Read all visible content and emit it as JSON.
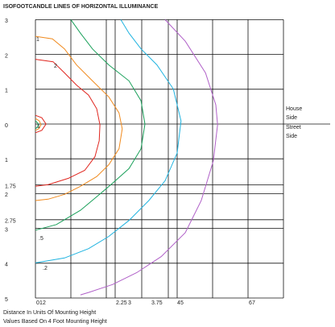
{
  "chart_data": {
    "type": "contour",
    "title": "ISOFOOTCANDLE LINES OF HORIZONTAL ILLUMINANCE",
    "xlabel": "Distance In Units Of Mounting Height",
    "note": "Values Based On 4 Foot Mounting Height",
    "side_labels": [
      "House",
      "Side",
      "Street",
      "Side"
    ],
    "xlim": [
      0,
      7
    ],
    "ylim": [
      -5,
      3
    ],
    "xticks": [
      0,
      1,
      2,
      2.25,
      3,
      3.75,
      4,
      5,
      6,
      7
    ],
    "yticks": [
      3,
      2,
      1,
      0,
      {
        "value": -1,
        "label": "1"
      },
      {
        "value": -1.75,
        "label": "1.75"
      },
      {
        "value": -2,
        "label": "2"
      },
      {
        "value": -2.75,
        "label": "2.75"
      },
      {
        "value": -3,
        "label": "3"
      },
      {
        "value": -4,
        "label": "4"
      },
      {
        "value": -5,
        "label": "5"
      }
    ],
    "grid": true,
    "series": [
      {
        "color": "#e0261f",
        "label": "2",
        "x": [
          0,
          0.5,
          0.82,
          1.16,
          1.5,
          1.73,
          1.82,
          1.8,
          1.68,
          1.39,
          0.93,
          0.36,
          0
        ],
        "y": [
          1.86,
          1.79,
          1.47,
          1.12,
          0.83,
          0.44,
          -0.02,
          -0.48,
          -0.94,
          -1.33,
          -1.56,
          -1.74,
          -1.79
        ]
      },
      {
        "color": "#e0261f",
        "x": [
          0,
          0.18,
          0.3,
          0.18,
          0
        ],
        "y": [
          0.25,
          0.18,
          0,
          -0.18,
          -0.25
        ]
      },
      {
        "color": "#f08a1e",
        "x": [
          0,
          0.11,
          0.16,
          0.09,
          0
        ],
        "y": [
          0.16,
          0.09,
          -0.02,
          -0.14,
          -0.18
        ]
      },
      {
        "color": "#1aa05a",
        "label": "1",
        "x": [
          0,
          0.07,
          0.07,
          0
        ],
        "y": [
          0.09,
          0.02,
          -0.07,
          -0.14
        ]
      },
      {
        "color": "#f08a1e",
        "label": "1",
        "x": [
          0,
          0.48,
          0.82,
          1.16,
          1.61,
          2.07,
          2.36,
          2.45,
          2.36,
          2.07,
          1.73,
          1.27,
          0.82,
          0.36,
          0
        ],
        "y": [
          2.52,
          2.45,
          2.16,
          1.7,
          1.24,
          0.78,
          0.32,
          -0.14,
          -0.71,
          -1.17,
          -1.51,
          -1.79,
          -2.02,
          -2.16,
          -2.2
        ]
      },
      {
        "color": "#1aa05a",
        "label": ".5",
        "x": [
          1,
          1.27,
          1.61,
          2.07,
          2.64,
          2.98,
          3.09,
          2.98,
          2.64,
          2.18,
          1.73,
          1.27,
          0.59,
          0
        ],
        "y": [
          3.0,
          2.61,
          2.16,
          1.7,
          1.24,
          0.67,
          0,
          -0.71,
          -1.28,
          -1.7,
          -2.09,
          -2.48,
          -2.89,
          -3.05
        ]
      },
      {
        "color": "#1fb3e0",
        "label": ".2",
        "x": [
          2.41,
          2.64,
          2.98,
          3.43,
          3.89,
          4.11,
          4.0,
          3.66,
          3.2,
          2.64,
          2.07,
          1.5,
          0.82,
          0
        ],
        "y": [
          3.0,
          2.61,
          2.16,
          1.7,
          1.01,
          0.09,
          -0.83,
          -1.63,
          -2.2,
          -2.77,
          -3.23,
          -3.58,
          -3.85,
          -3.99
        ]
      },
      {
        "color": "#b060c8",
        "x": [
          3.66,
          4.23,
          4.8,
          5.09,
          5.14,
          5.02,
          4.68,
          4.23,
          3.55,
          2.86,
          2.18,
          1.5,
          1.27
        ],
        "y": [
          3.0,
          2.38,
          1.47,
          0.55,
          -0.02,
          -1.06,
          -2.2,
          -3.12,
          -3.81,
          -4.27,
          -4.61,
          -4.84,
          -4.91
        ]
      }
    ]
  }
}
